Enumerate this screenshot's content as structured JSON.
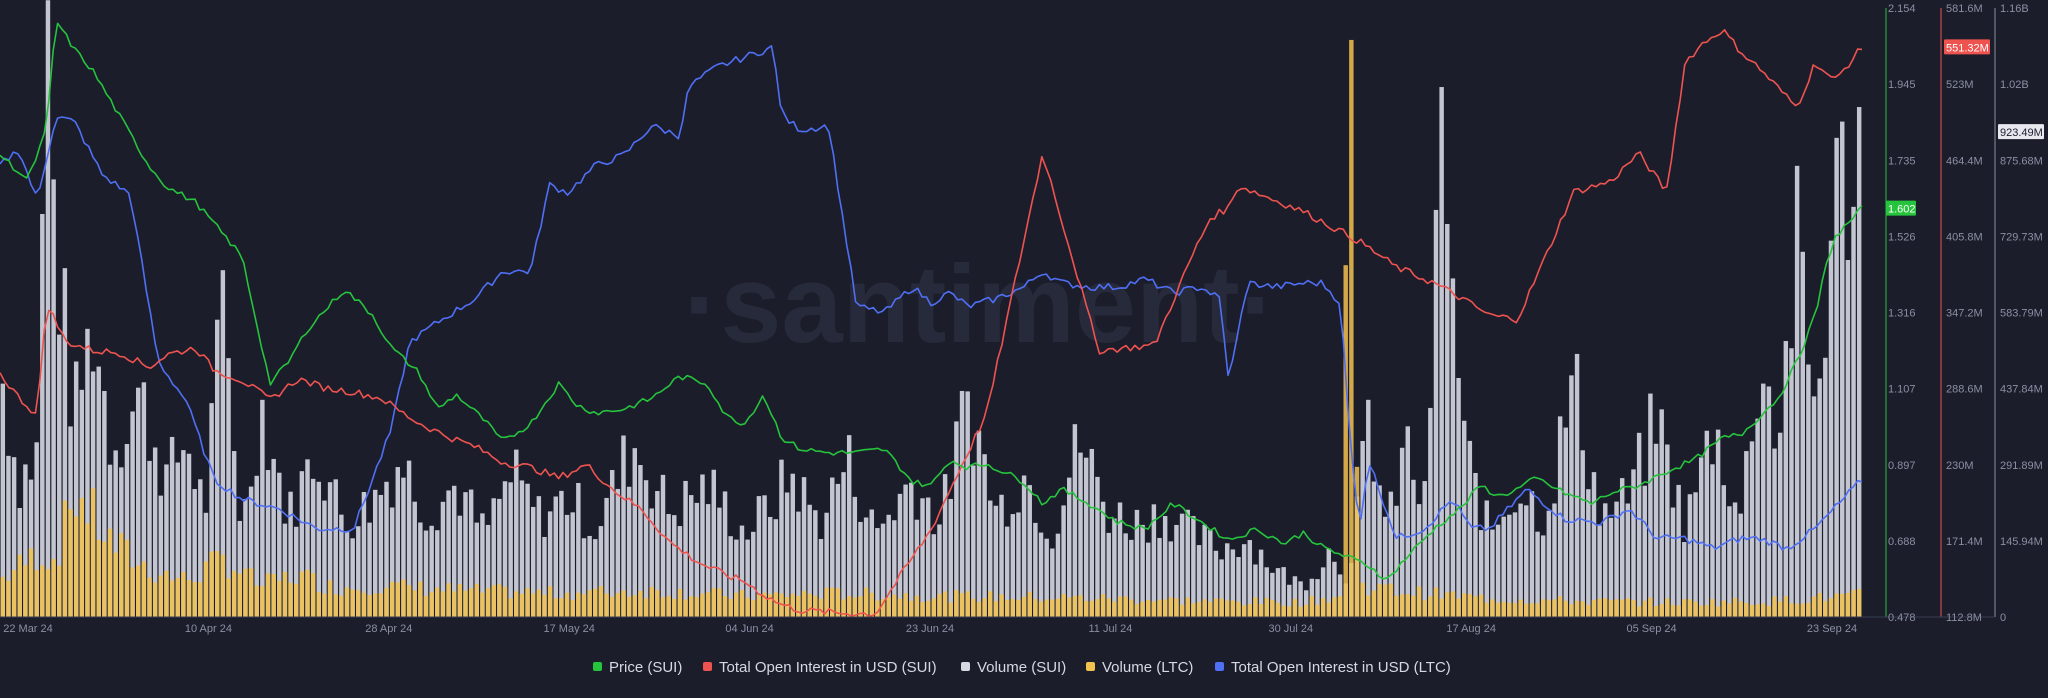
{
  "chart_data": {
    "type": "line",
    "watermark": "·santiment·",
    "x_labels": [
      "22 Mar 24",
      "10 Apr 24",
      "28 Apr 24",
      "17 May 24",
      "04 Jun 24",
      "23 Jun 24",
      "11 Jul 24",
      "30 Jul 24",
      "17 Aug 24",
      "05 Sep 24",
      "23 Sep 24"
    ],
    "axes": {
      "price": {
        "color": "#26c33c",
        "ylim": [
          0.478,
          2.154
        ],
        "ticks": [
          "2.154",
          "1.945",
          "1.735",
          "1.526",
          "1.316",
          "1.107",
          "0.897",
          "0.688",
          "0.478"
        ],
        "current_label": "1.602"
      },
      "oi_sui": {
        "color": "#ef5350",
        "ylim": [
          112.8,
          581.6
        ],
        "ticks": [
          "581.6M",
          "523M",
          "464.4M",
          "405.8M",
          "347.2M",
          "288.6M",
          "230M",
          "171.4M",
          "112.8M"
        ],
        "current_label": "551.32M"
      },
      "volume": {
        "color": "#d6d8e2",
        "ylim": [
          0,
          1160
        ],
        "ticks": [
          "1.16B",
          "1.02B",
          "875.68M",
          "729.73M",
          "583.79M",
          "437.84M",
          "291.89M",
          "145.94M",
          "0"
        ],
        "current_label": "923.49M"
      }
    },
    "series": [
      {
        "name": "Price (SUI)",
        "color": "#26c33c",
        "axis": "price",
        "x": [
          0,
          0.015,
          0.025,
          0.03,
          0.04,
          0.05,
          0.065,
          0.08,
          0.09,
          0.105,
          0.115,
          0.13,
          0.145,
          0.155,
          0.165,
          0.185,
          0.2,
          0.21,
          0.225,
          0.235,
          0.245,
          0.26,
          0.27,
          0.285,
          0.3,
          0.31,
          0.32,
          0.335,
          0.35,
          0.365,
          0.38,
          0.39,
          0.4,
          0.41,
          0.42,
          0.43,
          0.445,
          0.46,
          0.475,
          0.49,
          0.5,
          0.51,
          0.52,
          0.53,
          0.55,
          0.56,
          0.57,
          0.585,
          0.6,
          0.615,
          0.63,
          0.645,
          0.66,
          0.675,
          0.69,
          0.7,
          0.71,
          0.725,
          0.735,
          0.745,
          0.755,
          0.77,
          0.785,
          0.795,
          0.805,
          0.815,
          0.825,
          0.84,
          0.855,
          0.865,
          0.88,
          0.9,
          0.91,
          0.925,
          0.935,
          0.945,
          0.955,
          0.965,
          0.975,
          0.98,
          0.985,
          1.0
        ],
        "values": [
          1.75,
          1.68,
          1.82,
          2.12,
          2.04,
          1.98,
          1.85,
          1.72,
          1.66,
          1.62,
          1.56,
          1.47,
          1.12,
          1.18,
          1.27,
          1.38,
          1.31,
          1.22,
          1.15,
          1.05,
          1.09,
          1.02,
          0.96,
          1.01,
          1.12,
          1.06,
          1.04,
          1.05,
          1.08,
          1.14,
          1.12,
          1.03,
          1.01,
          1.09,
          0.97,
          0.94,
          0.93,
          0.93,
          0.94,
          0.85,
          0.84,
          0.91,
          0.89,
          0.9,
          0.85,
          0.79,
          0.83,
          0.79,
          0.74,
          0.72,
          0.79,
          0.74,
          0.69,
          0.72,
          0.68,
          0.71,
          0.67,
          0.64,
          0.62,
          0.58,
          0.64,
          0.72,
          0.78,
          0.84,
          0.81,
          0.83,
          0.86,
          0.82,
          0.79,
          0.82,
          0.84,
          0.89,
          0.91,
          0.97,
          0.98,
          1.03,
          1.08,
          1.18,
          1.31,
          1.43,
          1.52,
          1.602
        ]
      },
      {
        "name": "Total Open Interest in USD (SUI)",
        "color": "#ef5350",
        "axis": "oi_sui",
        "x": [
          0,
          0.01,
          0.02,
          0.025,
          0.035,
          0.05,
          0.065,
          0.08,
          0.09,
          0.105,
          0.115,
          0.13,
          0.145,
          0.16,
          0.175,
          0.19,
          0.205,
          0.215,
          0.225,
          0.24,
          0.255,
          0.27,
          0.285,
          0.3,
          0.315,
          0.33,
          0.345,
          0.36,
          0.375,
          0.39,
          0.4,
          0.405,
          0.41,
          0.415,
          0.42,
          0.43,
          0.45,
          0.47,
          0.5,
          0.53,
          0.56,
          0.59,
          0.62,
          0.64,
          0.65,
          0.66,
          0.665,
          0.7,
          0.73,
          0.75,
          0.77,
          0.785,
          0.8,
          0.815,
          0.83,
          0.845,
          0.865,
          0.88,
          0.895,
          0.905,
          0.915,
          0.925,
          0.935,
          0.945,
          0.955,
          0.965,
          0.975,
          0.985,
          1.0
        ],
        "values": [
          300,
          282,
          268,
          355,
          325,
          318,
          316,
          305,
          315,
          320,
          303,
          295,
          280,
          296,
          289,
          286,
          281,
          271,
          262,
          252,
          244,
          232,
          228,
          220,
          230,
          210,
          195,
          170,
          155,
          145,
          140,
          135,
          130,
          126,
          122,
          118,
          116,
          115,
          180,
          270,
          470,
          318,
          322,
          390,
          420,
          428,
          445,
          425,
          402,
          382,
          370,
          358,
          345,
          342,
          390,
          440,
          448,
          470,
          440,
          540,
          555,
          565,
          548,
          535,
          520,
          505,
          540,
          525,
          551.32
        ]
      },
      {
        "name": "Volume (SUI)",
        "color": "#d6d8e2",
        "axis": "volume",
        "x": [
          0,
          0.01,
          0.02,
          0.025,
          0.03,
          0.04,
          0.05,
          0.06,
          0.075,
          0.09,
          0.1,
          0.11,
          0.12,
          0.13,
          0.14,
          0.155,
          0.17,
          0.185,
          0.2,
          0.215,
          0.23,
          0.245,
          0.26,
          0.275,
          0.29,
          0.305,
          0.32,
          0.34,
          0.36,
          0.38,
          0.4,
          0.415,
          0.425,
          0.44,
          0.455,
          0.47,
          0.49,
          0.505,
          0.52,
          0.535,
          0.55,
          0.565,
          0.58,
          0.595,
          0.61,
          0.625,
          0.64,
          0.655,
          0.67,
          0.685,
          0.7,
          0.715,
          0.725,
          0.735,
          0.745,
          0.755,
          0.765,
          0.775,
          0.785,
          0.8,
          0.815,
          0.83,
          0.845,
          0.86,
          0.875,
          0.89,
          0.905,
          0.92,
          0.935,
          0.945,
          0.955,
          0.965,
          0.975,
          0.985,
          1.0
        ],
        "values": [
          480,
          260,
          310,
          1150,
          700,
          380,
          560,
          330,
          420,
          260,
          340,
          200,
          600,
          160,
          410,
          190,
          320,
          180,
          220,
          300,
          200,
          250,
          160,
          270,
          190,
          230,
          170,
          330,
          200,
          250,
          160,
          220,
          270,
          180,
          300,
          160,
          260,
          180,
          420,
          200,
          270,
          160,
          340,
          200,
          180,
          200,
          160,
          130,
          150,
          90,
          60,
          130,
          70,
          380,
          160,
          330,
          200,
          950,
          340,
          160,
          250,
          190,
          450,
          190,
          230,
          380,
          170,
          360,
          190,
          500,
          340,
          700,
          380,
          780,
          923.49
        ]
      },
      {
        "name": "Volume (LTC)",
        "color": "#f2c14e",
        "axis": "volume",
        "x": [
          0,
          0.02,
          0.03,
          0.04,
          0.06,
          0.08,
          0.1,
          0.12,
          0.14,
          0.16,
          0.18,
          0.2,
          0.25,
          0.3,
          0.35,
          0.4,
          0.45,
          0.5,
          0.55,
          0.6,
          0.65,
          0.7,
          0.72,
          0.725,
          0.73,
          0.75,
          0.8,
          0.85,
          0.9,
          0.95,
          1.0
        ],
        "values": [
          70,
          120,
          110,
          240,
          140,
          90,
          70,
          110,
          60,
          80,
          55,
          60,
          50,
          45,
          50,
          40,
          45,
          40,
          38,
          35,
          30,
          28,
          40,
          1150,
          60,
          50,
          35,
          30,
          28,
          30,
          42
        ]
      },
      {
        "name": "Total Open Interest in USD (LTC)",
        "color": "#4f6ff5",
        "axis": "oi_ltc",
        "x": [
          0,
          0.01,
          0.02,
          0.03,
          0.04,
          0.055,
          0.07,
          0.085,
          0.1,
          0.115,
          0.13,
          0.15,
          0.17,
          0.19,
          0.21,
          0.22,
          0.235,
          0.255,
          0.27,
          0.285,
          0.295,
          0.305,
          0.32,
          0.335,
          0.35,
          0.365,
          0.37,
          0.385,
          0.4,
          0.415,
          0.42,
          0.43,
          0.445,
          0.46,
          0.475,
          0.49,
          0.5,
          0.51,
          0.52,
          0.535,
          0.55,
          0.56,
          0.57,
          0.585,
          0.6,
          0.615,
          0.63,
          0.645,
          0.655,
          0.66,
          0.67,
          0.685,
          0.7,
          0.71,
          0.72,
          0.725,
          0.73,
          0.735,
          0.75,
          0.765,
          0.78,
          0.79,
          0.8,
          0.82,
          0.84,
          0.86,
          0.875,
          0.89,
          0.905,
          0.92,
          0.935,
          0.945,
          0.96,
          0.975,
          1.0
        ],
        "values": [
          230,
          238,
          212,
          255,
          252,
          225,
          215,
          130,
          110,
          70,
          60,
          55,
          45,
          45,
          95,
          140,
          150,
          162,
          176,
          176,
          220,
          216,
          230,
          235,
          250,
          245,
          270,
          280,
          285,
          290,
          255,
          248,
          250,
          158,
          155,
          168,
          160,
          165,
          158,
          162,
          168,
          176,
          170,
          168,
          168,
          172,
          165,
          168,
          162,
          120,
          170,
          168,
          170,
          170,
          160,
          90,
          45,
          80,
          40,
          45,
          60,
          45,
          45,
          65,
          50,
          48,
          55,
          40,
          40,
          35,
          40,
          40,
          35,
          45,
          70
        ]
      }
    ],
    "legend": [
      {
        "label": "Price (SUI)",
        "color": "#26c33c"
      },
      {
        "label": "Total Open Interest in USD (SUI)",
        "color": "#ef5350"
      },
      {
        "label": "Volume (SUI)",
        "color": "#d6d8e2"
      },
      {
        "label": "Volume (LTC)",
        "color": "#f2c14e"
      },
      {
        "label": "Total Open Interest in USD (LTC)",
        "color": "#4f6ff5"
      }
    ]
  }
}
